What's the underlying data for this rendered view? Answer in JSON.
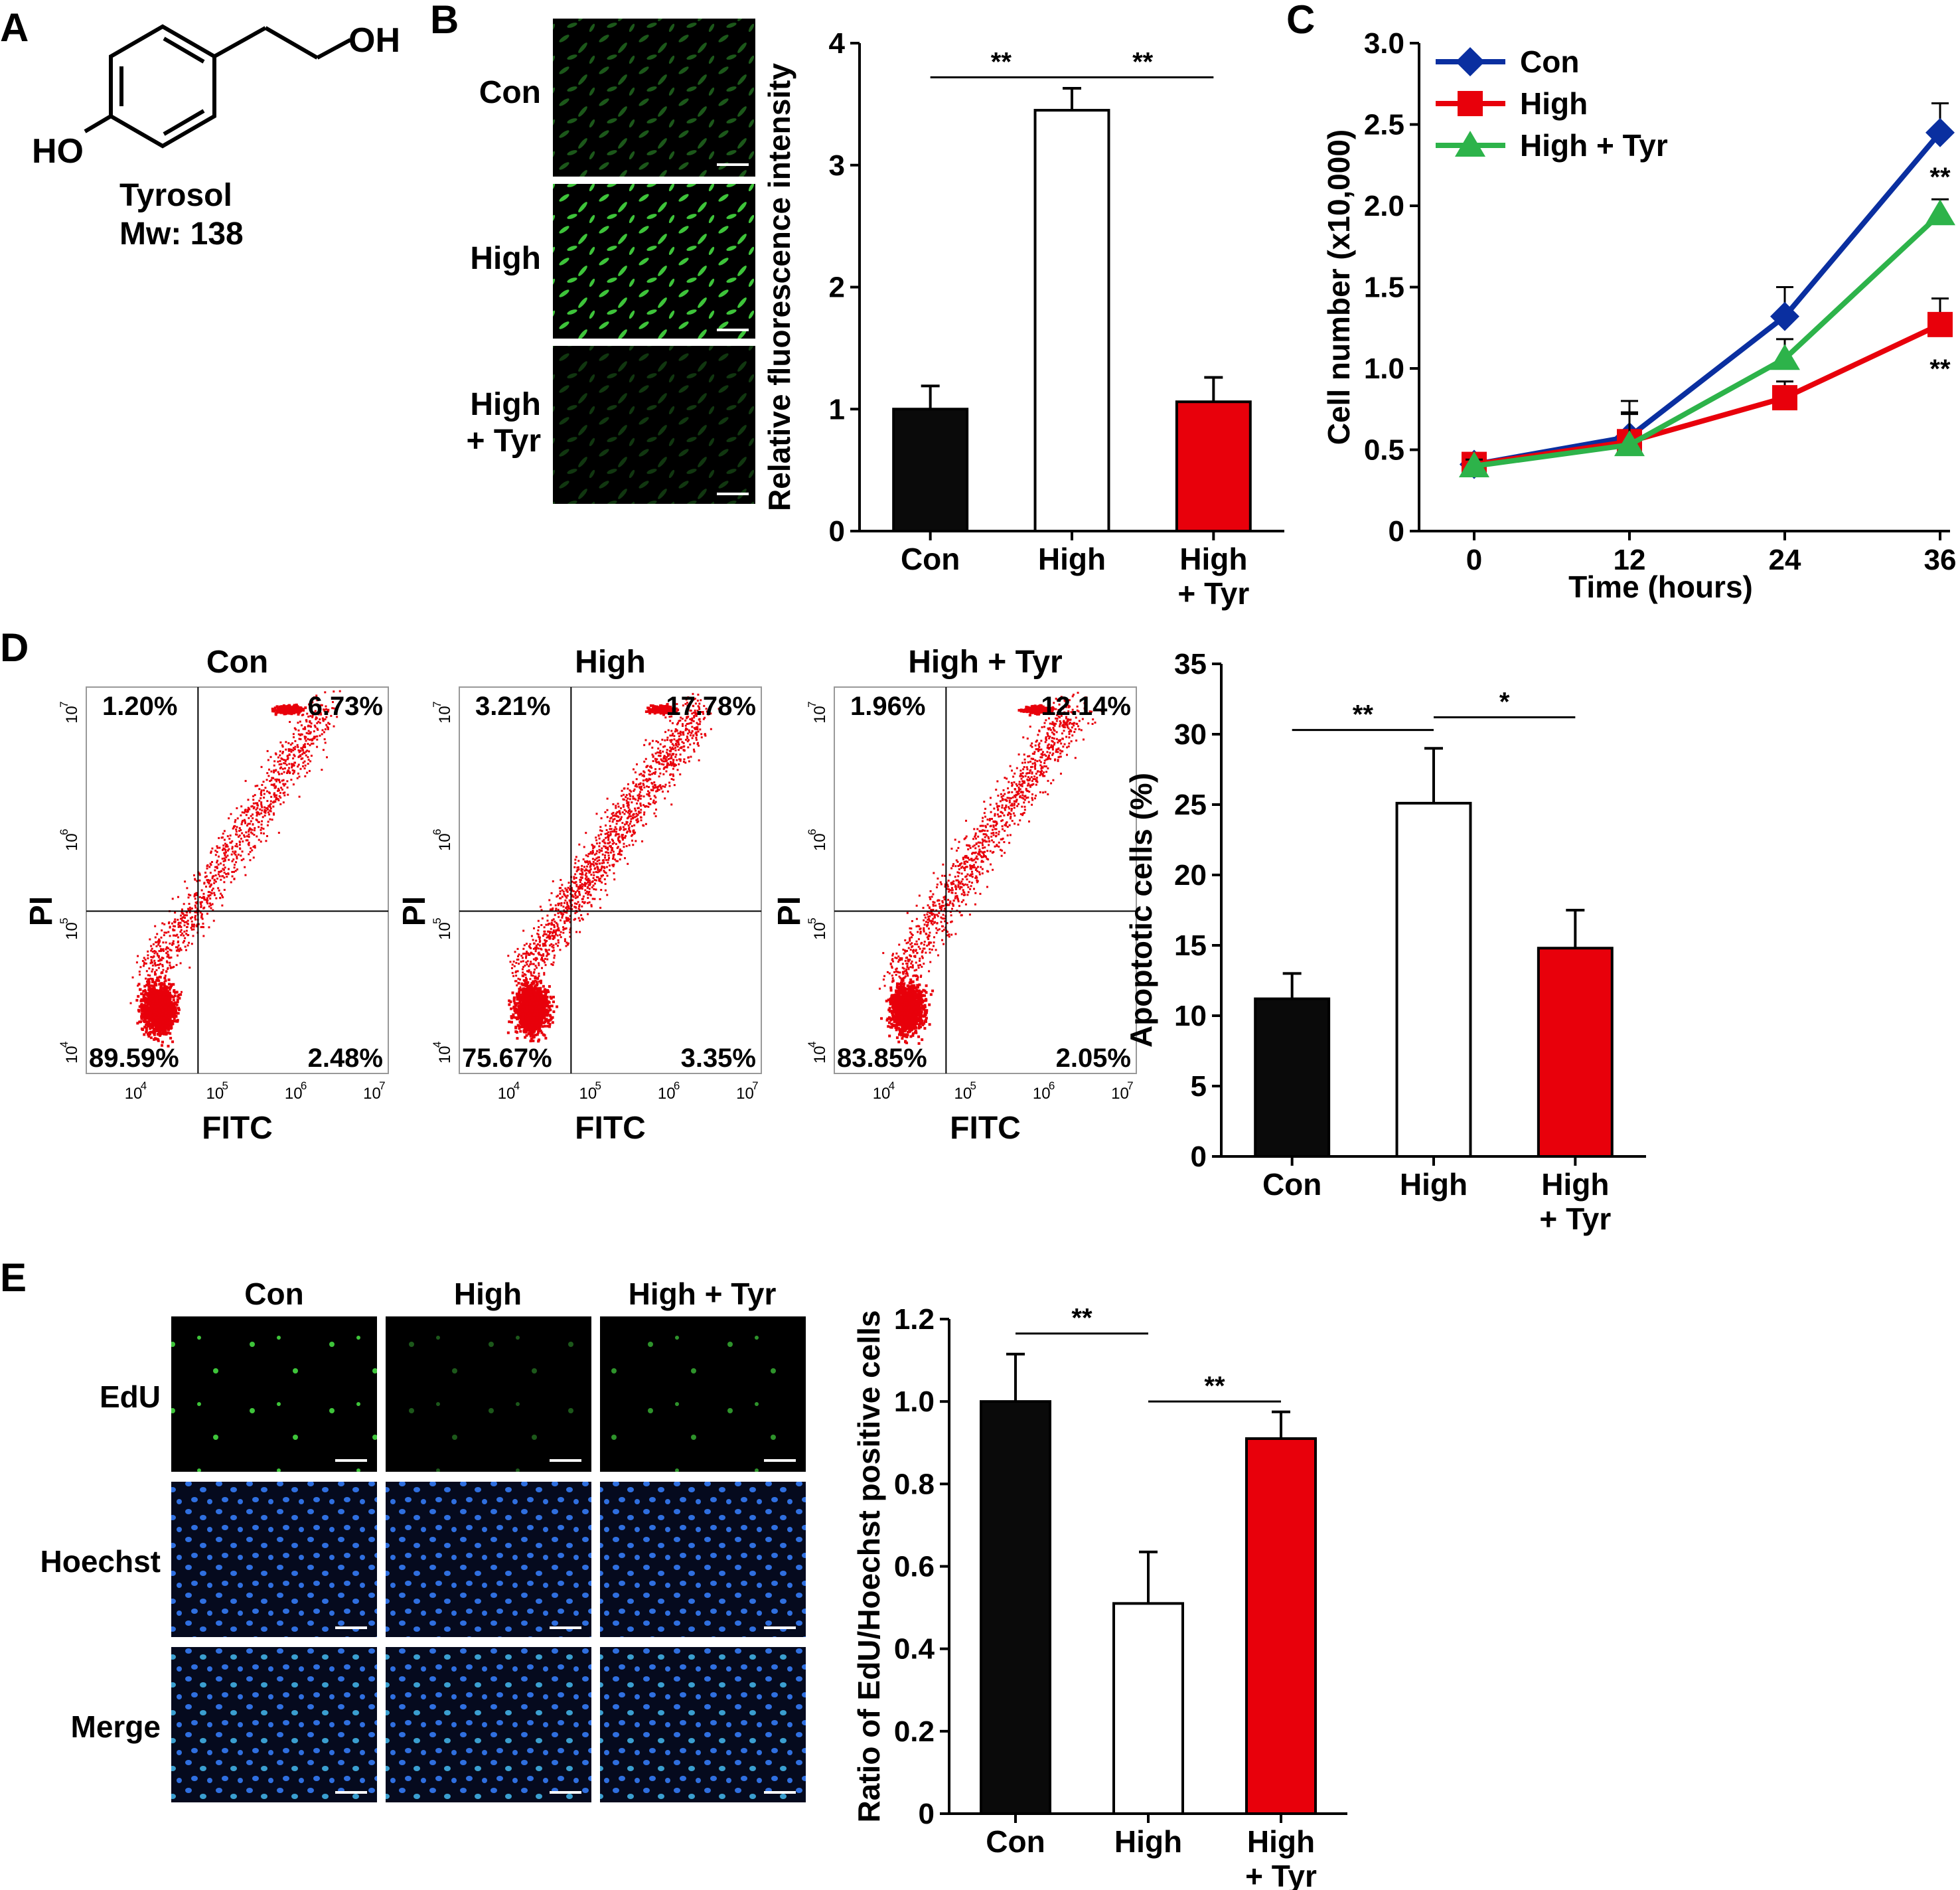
{
  "panels": {
    "A": "A",
    "B": "B",
    "C": "C",
    "D": "D",
    "E": "E"
  },
  "colors": {
    "black": "#0a0a0a",
    "white": "#ffffff",
    "red": "#e8000b",
    "blue": "#0a2fa0",
    "green": "#2db34a",
    "dot": "#e8000b",
    "cell_green": "#3ec43a",
    "cell_blue": "#2f6fe0"
  },
  "panel_a": {
    "oh_label": "OH",
    "ho_label": "HO",
    "name": "Tyrosol",
    "mw": "Mw: 138"
  },
  "panel_b": {
    "image_labels": [
      "Con",
      "High",
      "High\n+ Tyr"
    ],
    "image_label_lines": [
      [
        "Con"
      ],
      [
        "High"
      ],
      [
        "High",
        "+ Tyr"
      ]
    ],
    "image_intensity": [
      0.45,
      1.0,
      0.25
    ]
  },
  "panel_e_images": {
    "col_labels": [
      "Con",
      "High",
      "High + Tyr"
    ],
    "row_labels": [
      "EdU",
      "Hoechst",
      "Merge"
    ]
  },
  "panel_d_flow": {
    "xlabel": "FITC",
    "ylabel": "PI",
    "tick_exponents": [
      "4",
      "5",
      "6",
      "7"
    ],
    "plots": [
      {
        "title": "Con",
        "q_ul": "1.20%",
        "q_ur": "6.73%",
        "q_ll": "89.59%",
        "q_lr": "2.48%"
      },
      {
        "title": "High",
        "q_ul": "3.21%",
        "q_ur": "17.78%",
        "q_ll": "75.67%",
        "q_lr": "3.35%"
      },
      {
        "title": "High + Tyr",
        "q_ul": "1.96%",
        "q_ur": "12.14%",
        "q_ll": "83.85%",
        "q_lr": "2.05%"
      }
    ]
  },
  "chart_data": [
    {
      "id": "B",
      "type": "bar",
      "categories": [
        "Con",
        "High",
        "High\n+ Tyr"
      ],
      "category_lines": [
        [
          "Con"
        ],
        [
          "High"
        ],
        [
          "High",
          "+ Tyr"
        ]
      ],
      "values": [
        1.0,
        3.45,
        1.06
      ],
      "errors": [
        0.19,
        0.18,
        0.2
      ],
      "colors": [
        "#0a0a0a",
        "#ffffff",
        "#e8000b"
      ],
      "ylabel": "Relative fluorescence intensity",
      "ylim": [
        0,
        4
      ],
      "yticks": [
        "0",
        "1",
        "2",
        "3",
        "4"
      ],
      "significance": [
        {
          "from": 0,
          "to": 1,
          "label": "**",
          "y": 3.72
        },
        {
          "from": 1,
          "to": 2,
          "label": "**",
          "y": 3.72
        }
      ]
    },
    {
      "id": "C",
      "type": "line",
      "x": [
        0,
        12,
        24,
        36
      ],
      "xticks": [
        "0",
        "12",
        "24",
        "36"
      ],
      "xlabel": "Time (hours)",
      "ylabel": "Cell number (x10,000)",
      "ylim": [
        0,
        3.0
      ],
      "yticks": [
        "0",
        "0.5",
        "1.0",
        "1.5",
        "2.0",
        "2.5",
        "3.0"
      ],
      "legend_position": "top-left",
      "series": [
        {
          "name": "Con",
          "values": [
            0.41,
            0.58,
            1.32,
            2.45
          ],
          "errors": [
            0.04,
            0.22,
            0.18,
            0.18
          ],
          "color": "#0a2fa0",
          "marker": "diamond"
        },
        {
          "name": "High",
          "values": [
            0.41,
            0.55,
            0.82,
            1.27
          ],
          "errors": [
            0.04,
            0.17,
            0.1,
            0.16
          ],
          "color": "#e8000b",
          "marker": "square"
        },
        {
          "name": "High + Tyr",
          "values": [
            0.4,
            0.53,
            1.06,
            1.95
          ],
          "errors": [
            0.04,
            0.2,
            0.12,
            0.09
          ],
          "color": "#2db34a",
          "marker": "triangle"
        }
      ],
      "annotations": [
        {
          "label": "**",
          "x": 36,
          "y": 2.18
        },
        {
          "label": "**",
          "x": 36,
          "y": 1.0
        }
      ]
    },
    {
      "id": "D",
      "type": "bar",
      "categories": [
        "Con",
        "High",
        "High\n+ Tyr"
      ],
      "category_lines": [
        [
          "Con"
        ],
        [
          "High"
        ],
        [
          "High",
          "+ Tyr"
        ]
      ],
      "values": [
        11.2,
        25.1,
        14.8
      ],
      "errors": [
        1.8,
        3.9,
        2.7
      ],
      "colors": [
        "#0a0a0a",
        "#ffffff",
        "#e8000b"
      ],
      "ylabel": "Apoptotic cells (%)",
      "ylim": [
        0,
        35
      ],
      "yticks": [
        "0",
        "5",
        "10",
        "15",
        "20",
        "25",
        "30",
        "35"
      ],
      "significance": [
        {
          "from": 0,
          "to": 1,
          "label": "**",
          "y": 30.3
        },
        {
          "from": 1,
          "to": 2,
          "label": "*",
          "y": 31.2
        }
      ]
    },
    {
      "id": "E",
      "type": "bar",
      "categories": [
        "Con",
        "High",
        "High\n+ Tyr"
      ],
      "category_lines": [
        [
          "Con"
        ],
        [
          "High"
        ],
        [
          "High",
          "+ Tyr"
        ]
      ],
      "values": [
        1.0,
        0.51,
        0.91
      ],
      "errors": [
        0.115,
        0.125,
        0.065
      ],
      "colors": [
        "#0a0a0a",
        "#ffffff",
        "#e8000b"
      ],
      "ylabel": "Ratio of EdU/Hoechst positive cells",
      "ylim": [
        0,
        1.2
      ],
      "yticks": [
        "0",
        "0.2",
        "0.4",
        "0.6",
        "0.8",
        "1.0",
        "1.2"
      ],
      "significance": [
        {
          "from": 0,
          "to": 1,
          "label": "**",
          "y": 1.165
        },
        {
          "from": 1,
          "to": 2,
          "label": "**",
          "y": 1.0
        }
      ]
    }
  ]
}
